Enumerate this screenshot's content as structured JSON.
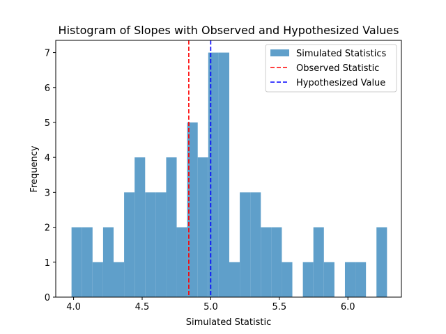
{
  "chart_data": {
    "type": "bar",
    "title": "Histogram of Slopes with Observed and Hypothesized Values",
    "xlabel": "Simulated Statistic",
    "ylabel": "Frequency",
    "xlim": [
      3.87,
      6.39
    ],
    "ylim": [
      0,
      7.35
    ],
    "x_ticks": [
      4.0,
      4.5,
      5.0,
      5.5,
      6.0
    ],
    "x_tick_labels": [
      "4.0",
      "4.5",
      "5.0",
      "5.5",
      "6.0"
    ],
    "y_ticks": [
      0,
      1,
      2,
      3,
      4,
      5,
      6,
      7
    ],
    "y_tick_labels": [
      "0",
      "1",
      "2",
      "3",
      "4",
      "5",
      "6",
      "7"
    ],
    "bin_edges": [
      3.985,
      4.0617,
      4.1383,
      4.215,
      4.2917,
      4.3683,
      4.445,
      4.5217,
      4.5983,
      4.675,
      4.7517,
      4.8283,
      4.905,
      4.9817,
      5.0583,
      5.135,
      5.2117,
      5.2883,
      5.365,
      5.4417,
      5.5183,
      5.595,
      5.6717,
      5.7483,
      5.825,
      5.9017,
      5.9783,
      6.055,
      6.1317,
      6.2083,
      6.285
    ],
    "counts": [
      2,
      2,
      1,
      2,
      1,
      3,
      4,
      3,
      3,
      4,
      2,
      5,
      4,
      7,
      7,
      1,
      3,
      3,
      2,
      2,
      1,
      0,
      1,
      2,
      1,
      0,
      1,
      1,
      0,
      2
    ],
    "series": [
      {
        "name": "Simulated Statistics",
        "kind": "histogram",
        "color": "#5f9fca"
      },
      {
        "name": "Observed Statistic",
        "kind": "vline",
        "x": 4.84,
        "color": "#ff0000",
        "style": "dashed"
      },
      {
        "name": "Hypothesized Value",
        "kind": "vline",
        "x": 5.0,
        "color": "#0000ff",
        "style": "dashed"
      }
    ],
    "legend_position": "top-right",
    "grid": false
  }
}
